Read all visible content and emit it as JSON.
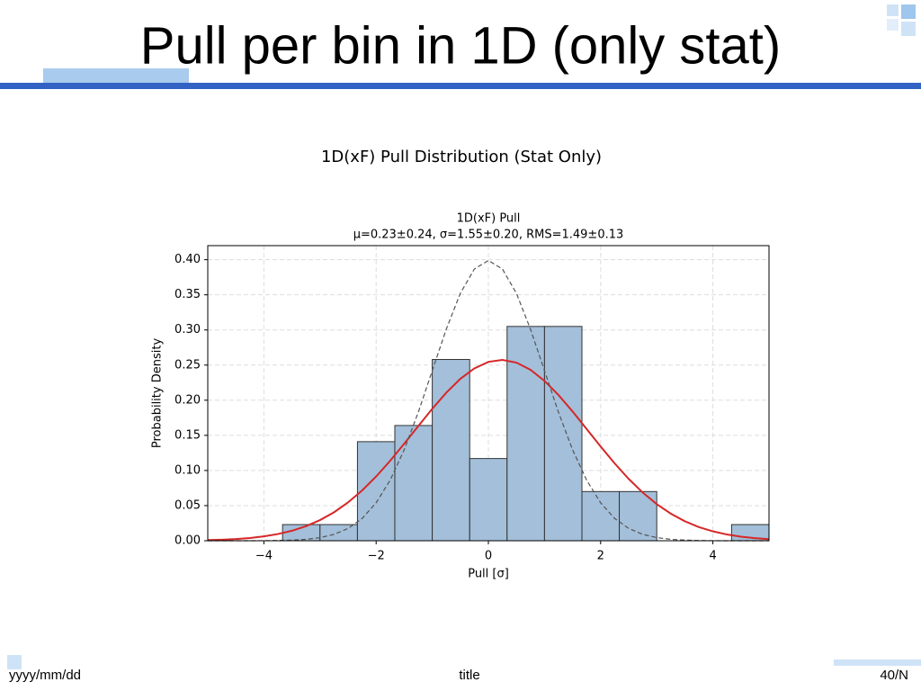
{
  "slide": {
    "title": "Pull per bin in 1D (only stat)",
    "footer": {
      "date": "yyyy/mm/dd",
      "title": "title",
      "page": "40/N"
    }
  },
  "chart_data": {
    "type": "histogram",
    "title": "1D(xF) Pull Distribution (Stat Only)",
    "subtitle": [
      "1D(xF) Pull",
      "μ=0.23±0.24,  σ=1.55±0.20,  RMS=1.49±0.13"
    ],
    "x_label": "Pull [σ]",
    "y_label": "Probability Density",
    "bins": [
      -3.667,
      -3,
      -2.333,
      -1.667,
      -1,
      -0.333,
      0.333,
      1,
      1.667,
      2.333,
      3,
      3.667,
      4.333,
      5
    ],
    "values": [
      0.023,
      0.023,
      0.141,
      0.164,
      0.258,
      0.117,
      0.305,
      0.305,
      0.07,
      0.07,
      0,
      0,
      0.023
    ],
    "color": "#a3bfd9",
    "edge_color": "#333333",
    "curves": [
      {
        "color": "#d62728",
        "dashed": false,
        "x": [
          -5,
          -4.75,
          -4.5,
          -4.25,
          -4,
          -3.75,
          -3.5,
          -3.25,
          -3,
          -2.75,
          -2.5,
          -2.25,
          -2,
          -1.75,
          -1.5,
          -1.25,
          -1,
          -0.75,
          -0.5,
          -0.25,
          0,
          0.25,
          0.5,
          0.75,
          1,
          1.25,
          1.5,
          1.75,
          2,
          2.25,
          2.5,
          2.75,
          3,
          3.25,
          3.5,
          3.75,
          4,
          4.25,
          4.5,
          4.75,
          5
        ],
        "values": [
          0.0009,
          0.0015,
          0.0024,
          0.0039,
          0.0062,
          0.0095,
          0.0142,
          0.0207,
          0.0294,
          0.0405,
          0.0546,
          0.0716,
          0.0914,
          0.1138,
          0.1381,
          0.1631,
          0.1878,
          0.2107,
          0.2304,
          0.2453,
          0.2546,
          0.2574,
          0.2535,
          0.2433,
          0.2275,
          0.2073,
          0.184,
          0.1591,
          0.1341,
          0.1101,
          0.088,
          0.0686,
          0.0521,
          0.0386,
          0.0278,
          0.0195,
          0.0134,
          0.0089,
          0.0058,
          0.0037,
          0.0023
        ]
      },
      {
        "color": "#555555",
        "dashed": true,
        "x": [
          -5,
          -4.75,
          -4.5,
          -4.25,
          -4,
          -3.75,
          -3.5,
          -3.25,
          -3,
          -2.75,
          -2.5,
          -2.25,
          -2,
          -1.75,
          -1.5,
          -1.25,
          -1,
          -0.75,
          -0.5,
          -0.25,
          0,
          0.25,
          0.5,
          0.75,
          1,
          1.25,
          1.5,
          1.75,
          2,
          2.25,
          2.5,
          2.75,
          3,
          3.25,
          3.5,
          3.75,
          4,
          4.25,
          4.5,
          4.75,
          5
        ],
        "values": [
          0,
          0,
          0,
          0,
          0.0001,
          0.0004,
          0.0009,
          0.002,
          0.0044,
          0.0091,
          0.0175,
          0.0317,
          0.054,
          0.0863,
          0.1295,
          0.1826,
          0.242,
          0.3011,
          0.3521,
          0.3867,
          0.3989,
          0.3867,
          0.3521,
          0.3011,
          0.242,
          0.1826,
          0.1295,
          0.0863,
          0.054,
          0.0317,
          0.0175,
          0.0091,
          0.0044,
          0.002,
          0.0009,
          0.0004,
          0.0001,
          0,
          0,
          0,
          0
        ]
      }
    ],
    "xlim": [
      -5,
      5
    ],
    "xticks": [
      {
        "value": -4,
        "label": "−4"
      },
      {
        "value": -2,
        "label": "−2"
      },
      0,
      2,
      4
    ],
    "ylim": [
      0,
      0.42
    ],
    "yticks": [
      {
        "value": 0,
        "label": "0.00"
      },
      0.05,
      {
        "value": 0.1,
        "label": "0.10"
      },
      0.15,
      {
        "value": 0.2,
        "label": "0.20"
      },
      0.25,
      {
        "value": 0.3,
        "label": "0.30"
      },
      0.35,
      {
        "value": 0.4,
        "label": "0.40"
      }
    ],
    "grid": true
  }
}
